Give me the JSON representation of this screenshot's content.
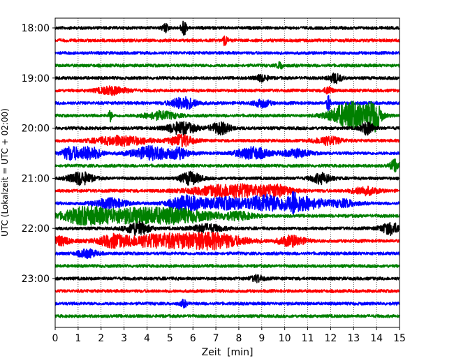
{
  "chart_data": {
    "type": "line",
    "title": "",
    "xlabel": "Zeit  [min]",
    "ylabel": "UTC (Lokalzeit = UTC + 02:00)",
    "xlim": [
      0,
      15
    ],
    "x_ticks": [
      0,
      1,
      2,
      3,
      4,
      5,
      6,
      7,
      8,
      9,
      10,
      11,
      12,
      13,
      14,
      15
    ],
    "x_tick_labels": [
      "0",
      "1",
      "2",
      "3",
      "4",
      "5",
      "6",
      "7",
      "8",
      "9",
      "10",
      "11",
      "12",
      "13",
      "14",
      "15"
    ],
    "y_tick_labels": [
      {
        "label": "18:00",
        "time": "18:00"
      },
      {
        "label": "19:00",
        "time": "19:00"
      },
      {
        "label": "20:00",
        "time": "20:00"
      },
      {
        "label": "21:00",
        "time": "21:00"
      },
      {
        "label": "22:00",
        "time": "22:00"
      },
      {
        "label": "23:00",
        "time": "23:00"
      }
    ],
    "grid": "vertical dotted",
    "trace_colors": [
      "#000000",
      "#ff0000",
      "#0000ff",
      "#008000"
    ],
    "series": [
      {
        "start": "18:00",
        "color": "#000000",
        "bursts": [
          {
            "t": 4.8,
            "w": 0.1,
            "a": 0.6
          },
          {
            "t": 5.6,
            "w": 0.08,
            "a": 1.2
          }
        ]
      },
      {
        "start": "18:15",
        "color": "#ff0000",
        "bursts": [
          {
            "t": 7.4,
            "w": 0.08,
            "a": 0.8
          }
        ]
      },
      {
        "start": "18:30",
        "color": "#0000ff",
        "bursts": []
      },
      {
        "start": "18:45",
        "color": "#008000",
        "bursts": [
          {
            "t": 9.8,
            "w": 0.1,
            "a": 0.5
          }
        ]
      },
      {
        "start": "19:00",
        "color": "#000000",
        "bursts": [
          {
            "t": 9.0,
            "w": 0.2,
            "a": 0.5
          },
          {
            "t": 12.2,
            "w": 0.2,
            "a": 0.7
          }
        ]
      },
      {
        "start": "19:15",
        "color": "#ff0000",
        "bursts": [
          {
            "t": 2.5,
            "w": 0.45,
            "a": 0.6
          },
          {
            "t": 11.9,
            "w": 0.12,
            "a": 0.6
          }
        ]
      },
      {
        "start": "19:30",
        "color": "#0000ff",
        "bursts": [
          {
            "t": 5.6,
            "w": 0.4,
            "a": 0.9
          },
          {
            "t": 9.0,
            "w": 0.25,
            "a": 0.6
          },
          {
            "t": 11.9,
            "w": 0.05,
            "a": 1.4
          }
        ]
      },
      {
        "start": "19:45",
        "color": "#008000",
        "bursts": [
          {
            "t": 2.4,
            "w": 0.05,
            "a": 0.9
          },
          {
            "t": 4.6,
            "w": 0.5,
            "a": 0.6
          },
          {
            "t": 12.9,
            "w": 0.6,
            "a": 2.2
          },
          {
            "t": 13.9,
            "w": 0.2,
            "a": 2.0
          }
        ]
      },
      {
        "start": "20:00",
        "color": "#000000",
        "bursts": [
          {
            "t": 5.5,
            "w": 0.45,
            "a": 0.9
          },
          {
            "t": 7.2,
            "w": 0.3,
            "a": 0.9
          },
          {
            "t": 13.6,
            "w": 0.2,
            "a": 1.0
          }
        ]
      },
      {
        "start": "20:15",
        "color": "#ff0000",
        "bursts": [
          {
            "t": 2.9,
            "w": 0.8,
            "a": 0.7
          },
          {
            "t": 5.5,
            "w": 0.35,
            "a": 0.9
          },
          {
            "t": 11.9,
            "w": 0.4,
            "a": 0.6
          }
        ]
      },
      {
        "start": "20:30",
        "color": "#0000ff",
        "bursts": [
          {
            "t": 0.65,
            "w": 0.25,
            "a": 1.0
          },
          {
            "t": 1.5,
            "w": 0.35,
            "a": 1.0
          },
          {
            "t": 4.2,
            "w": 0.6,
            "a": 1.0
          },
          {
            "t": 5.4,
            "w": 0.3,
            "a": 0.7
          },
          {
            "t": 8.6,
            "w": 0.5,
            "a": 0.9
          },
          {
            "t": 10.5,
            "w": 0.4,
            "a": 0.6
          }
        ]
      },
      {
        "start": "20:45",
        "color": "#008000",
        "bursts": [
          {
            "t": 14.8,
            "w": 0.15,
            "a": 0.9
          }
        ]
      },
      {
        "start": "21:00",
        "color": "#000000",
        "bursts": [
          {
            "t": 1.1,
            "w": 0.35,
            "a": 1.0
          },
          {
            "t": 5.9,
            "w": 0.3,
            "a": 1.0
          },
          {
            "t": 11.6,
            "w": 0.3,
            "a": 0.8
          }
        ]
      },
      {
        "start": "21:15",
        "color": "#ff0000",
        "bursts": [
          {
            "t": 7.8,
            "w": 1.2,
            "a": 1.0
          },
          {
            "t": 9.7,
            "w": 0.4,
            "a": 0.6
          },
          {
            "t": 13.5,
            "w": 0.4,
            "a": 0.6
          }
        ]
      },
      {
        "start": "21:30",
        "color": "#0000ff",
        "bursts": [
          {
            "t": 2.4,
            "w": 0.5,
            "a": 0.7
          },
          {
            "t": 5.7,
            "w": 0.5,
            "a": 1.1
          },
          {
            "t": 7.5,
            "w": 0.8,
            "a": 0.9
          },
          {
            "t": 9.1,
            "w": 0.4,
            "a": 0.9
          },
          {
            "t": 10.5,
            "w": 0.8,
            "a": 1.2
          },
          {
            "t": 10.4,
            "w": 0.04,
            "a": 1.8
          },
          {
            "t": 12.6,
            "w": 0.4,
            "a": 0.5
          }
        ]
      },
      {
        "start": "21:45",
        "color": "#008000",
        "bursts": [
          {
            "t": 1.2,
            "w": 0.6,
            "a": 0.8
          },
          {
            "t": 2.8,
            "w": 1.5,
            "a": 1.0
          },
          {
            "t": 5.3,
            "w": 1.2,
            "a": 0.9
          },
          {
            "t": 8.0,
            "w": 0.5,
            "a": 0.5
          }
        ]
      },
      {
        "start": "22:00",
        "color": "#000000",
        "bursts": [
          {
            "t": 3.6,
            "w": 0.35,
            "a": 1.0
          },
          {
            "t": 6.6,
            "w": 0.5,
            "a": 0.6
          },
          {
            "t": 14.6,
            "w": 0.3,
            "a": 0.9
          }
        ]
      },
      {
        "start": "22:15",
        "color": "#ff0000",
        "bursts": [
          {
            "t": 0.2,
            "w": 0.3,
            "a": 0.7
          },
          {
            "t": 2.5,
            "w": 0.35,
            "a": 0.7
          },
          {
            "t": 4.7,
            "w": 1.5,
            "a": 1.0
          },
          {
            "t": 7.0,
            "w": 0.9,
            "a": 0.9
          },
          {
            "t": 10.3,
            "w": 0.4,
            "a": 0.8
          }
        ]
      },
      {
        "start": "22:30",
        "color": "#0000ff",
        "bursts": [
          {
            "t": 1.4,
            "w": 0.3,
            "a": 0.6
          }
        ]
      },
      {
        "start": "22:45",
        "color": "#008000",
        "bursts": []
      },
      {
        "start": "23:00",
        "color": "#000000",
        "bursts": [
          {
            "t": 8.8,
            "w": 0.2,
            "a": 0.5
          }
        ]
      },
      {
        "start": "23:15",
        "color": "#ff0000",
        "bursts": []
      },
      {
        "start": "23:30",
        "color": "#0000ff",
        "bursts": [
          {
            "t": 5.6,
            "w": 0.1,
            "a": 0.5
          }
        ]
      },
      {
        "start": "23:45",
        "color": "#008000",
        "bursts": []
      }
    ]
  }
}
